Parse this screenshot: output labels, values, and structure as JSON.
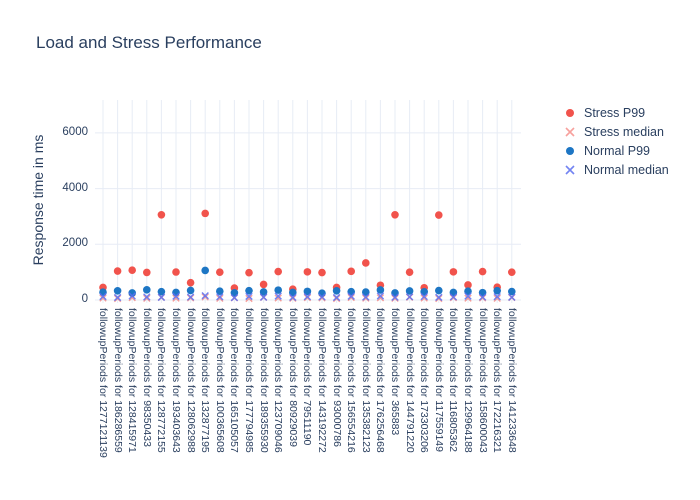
{
  "title": "Load and Stress Performance",
  "y_axis": {
    "title": "Response time in ms",
    "ticks": [
      0,
      2000,
      4000,
      6000
    ]
  },
  "legend": {
    "items": [
      {
        "label": "Stress P99",
        "marker": "circle",
        "color": "#f1534c",
        "opacity": 1
      },
      {
        "label": "Stress median",
        "marker": "x",
        "color": "#f1534c",
        "opacity": 0.55
      },
      {
        "label": "Normal P99",
        "marker": "circle",
        "color": "#1d76c4",
        "opacity": 1
      },
      {
        "label": "Normal median",
        "marker": "x",
        "color": "#5a6ff0",
        "opacity": 0.85
      }
    ]
  },
  "colors": {
    "text": "#2a3f5f",
    "grid": "#e7ecf5",
    "background": "#ffffff"
  },
  "chart_data": {
    "type": "scatter",
    "title": "Load and Stress Performance",
    "xlabel": "",
    "ylabel": "Response time in ms",
    "ylim": [
      0,
      7200
    ],
    "yticks": [
      0,
      2000,
      4000,
      6000
    ],
    "grid": true,
    "legend_position": "right",
    "categories": [
      "followupPeriods for 1277121139",
      "followupPeriods for 186286559",
      "followupPeriods for 128415971",
      "followupPeriods for 98350433",
      "followupPeriods for 128772155",
      "followupPeriods for 193403643",
      "followupPeriods for 128062988",
      "followupPeriods for 132877195",
      "followupPeriods for 100365608",
      "followupPeriods for 165105057",
      "followupPeriods for 177794985",
      "followupPeriods for 189355930",
      "followupPeriods for 123709046",
      "followupPeriods for 80929039",
      "followupPeriods for 79511190",
      "followupPeriods for 143192272",
      "followupPeriods for 93000786",
      "followupPeriods for 156554216",
      "followupPeriods for 135382123",
      "followupPeriods for 176256468",
      "followupPeriods for 365883",
      "followupPeriods for 144791220",
      "followupPeriods for 173303206",
      "followupPeriods for 117559149",
      "followupPeriods for 116805362",
      "followupPeriods for 129964188",
      "followupPeriods for 158600043",
      "followupPeriods for 172216321",
      "followupPeriods for 141233648"
    ],
    "series": [
      {
        "name": "Stress P99",
        "marker": "circle",
        "color": "#f1534c",
        "opacity": 1,
        "values": [
          450,
          1040,
          1070,
          990,
          3060,
          1005,
          620,
          3110,
          1000,
          430,
          980,
          560,
          1020,
          390,
          1010,
          985,
          450,
          1030,
          1330,
          530,
          3060,
          1000,
          440,
          3050,
          1010,
          540,
          1020,
          460,
          1000
        ]
      },
      {
        "name": "Stress median",
        "marker": "x",
        "color": "#f1534c",
        "opacity": 0.55,
        "values": [
          70,
          55,
          85,
          60,
          95,
          65,
          75,
          110,
          60,
          80,
          55,
          95,
          70,
          60,
          85,
          75,
          55,
          90,
          65,
          80,
          60,
          100,
          70,
          55,
          85,
          65,
          75,
          60,
          90
        ]
      },
      {
        "name": "Normal P99",
        "marker": "circle",
        "color": "#1d76c4",
        "opacity": 1,
        "values": [
          280,
          330,
          255,
          365,
          300,
          270,
          345,
          1060,
          315,
          260,
          335,
          290,
          355,
          270,
          310,
          245,
          330,
          300,
          285,
          360,
          255,
          325,
          295,
          340,
          270,
          315,
          265,
          335,
          305
        ]
      },
      {
        "name": "Normal median",
        "marker": "x",
        "color": "#5a6ff0",
        "opacity": 0.85,
        "values": [
          125,
          90,
          145,
          110,
          95,
          135,
          105,
          155,
          115,
          85,
          130,
          100,
          140,
          95,
          120,
          110,
          90,
          135,
          105,
          145,
          100,
          115,
          125,
          95,
          110,
          140,
          105,
          120,
          100
        ]
      }
    ]
  }
}
